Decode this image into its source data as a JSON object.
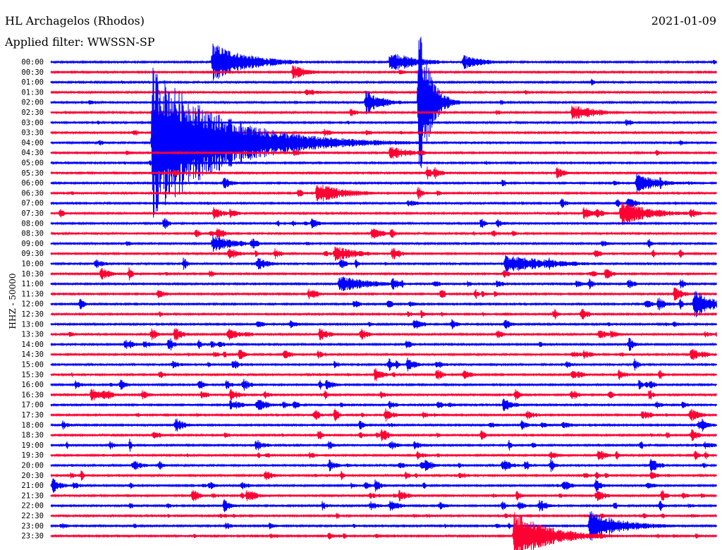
{
  "header": {
    "station": "HL Archagelos (Rhodos)",
    "filter": "Applied filter: WWSSN-SP",
    "date": "2021-01-09"
  },
  "chart_data": {
    "type": "line",
    "title": "HL Archagelos (Rhodos)",
    "subtitle": "Applied filter: WWSSN-SP",
    "date": "2021-01-09",
    "ylabel": "HHZ - 50000",
    "minutes_per_line": 30,
    "colors": [
      "#0000ff",
      "#ff0033"
    ],
    "row_labels": [
      "00:00",
      "00:30",
      "01:00",
      "01:30",
      "02:00",
      "02:30",
      "03:00",
      "03:30",
      "04:00",
      "04:30",
      "05:00",
      "05:30",
      "06:00",
      "06:30",
      "07:00",
      "07:30",
      "08:00",
      "08:30",
      "09:00",
      "09:30",
      "10:00",
      "10:30",
      "11:00",
      "11:30",
      "12:00",
      "12:30",
      "13:00",
      "13:30",
      "14:00",
      "14:30",
      "15:00",
      "15:30",
      "16:00",
      "16:30",
      "17:00",
      "17:30",
      "18:00",
      "18:30",
      "19:00",
      "19:30",
      "20:00",
      "20:30",
      "21:00",
      "21:30",
      "22:00",
      "22:30",
      "23:00",
      "23:30"
    ],
    "events": [
      {
        "row": 0,
        "minute": 7.3,
        "amp": 28,
        "dur": 1.6
      },
      {
        "row": 0,
        "minute": 15.3,
        "amp": 16,
        "dur": 1.2
      },
      {
        "row": 0,
        "minute": 18.6,
        "amp": 10,
        "dur": 1.0
      },
      {
        "row": 1,
        "minute": 10.9,
        "amp": 10,
        "dur": 0.8
      },
      {
        "row": 3,
        "minute": 11.5,
        "amp": 6,
        "dur": 0.6
      },
      {
        "row": 4,
        "minute": 14.2,
        "amp": 18,
        "dur": 0.8
      },
      {
        "row": 4,
        "minute": 16.6,
        "amp": 120,
        "dur": 0.5
      },
      {
        "row": 5,
        "minute": 23.5,
        "amp": 12,
        "dur": 1.2
      },
      {
        "row": 8,
        "minute": 4.6,
        "amp": 110,
        "dur": 3.0
      },
      {
        "row": 9,
        "minute": 15.3,
        "amp": 10,
        "dur": 1.0
      },
      {
        "row": 12,
        "minute": 26.4,
        "amp": 14,
        "dur": 1.0
      },
      {
        "row": 13,
        "minute": 12.0,
        "amp": 16,
        "dur": 1.2
      },
      {
        "row": 15,
        "minute": 25.7,
        "amp": 18,
        "dur": 1.4
      },
      {
        "row": 18,
        "minute": 7.3,
        "amp": 12,
        "dur": 1.0
      },
      {
        "row": 19,
        "minute": 12.8,
        "amp": 12,
        "dur": 1.0
      },
      {
        "row": 20,
        "minute": 20.5,
        "amp": 14,
        "dur": 2.0
      },
      {
        "row": 22,
        "minute": 13.0,
        "amp": 12,
        "dur": 1.6
      },
      {
        "row": 24,
        "minute": 29.0,
        "amp": 22,
        "dur": 0.8
      },
      {
        "row": 46,
        "minute": 24.3,
        "amp": 22,
        "dur": 1.5
      },
      {
        "row": 47,
        "minute": 20.9,
        "amp": 36,
        "dur": 1.6
      }
    ]
  }
}
